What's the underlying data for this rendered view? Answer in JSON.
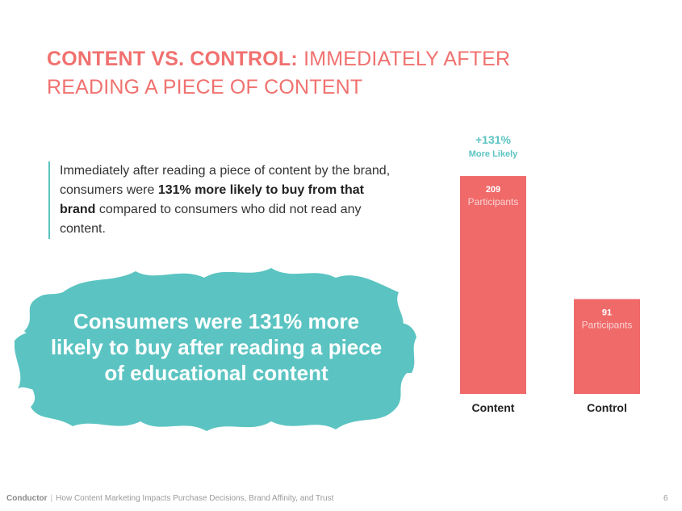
{
  "title": {
    "bold": "CONTENT VS. CONTROL:",
    "rest": " IMMEDIATELY AFTER READING A PIECE OF CONTENT"
  },
  "quote": {
    "part1": "Immediately after reading a piece of content by the brand, consumers were ",
    "bold": "131% more likely to buy from that brand",
    "part2": " compared to consumers who did not read any content."
  },
  "highlight": {
    "text": "Consumers were 131% more likely to buy after reading a piece of educational content"
  },
  "chart_data": {
    "type": "bar",
    "categories": [
      "Content",
      "Control"
    ],
    "values": [
      209,
      91
    ],
    "value_labels": [
      "209",
      "91"
    ],
    "bar_sublabel": "Participants",
    "annotation": {
      "value": "+131%",
      "label": "More Likely"
    },
    "ylim": [
      0,
      240
    ],
    "colors": {
      "bar": "#f06a6a",
      "annotation": "#5bc4c2",
      "axis_label": "#222222"
    }
  },
  "footer": {
    "brand": "Conductor",
    "separator": "|",
    "text": "How Content Marketing Impacts Purchase Decisions, Brand Affinity, and Trust",
    "page": "6"
  },
  "colors": {
    "accent_red": "#f0716f",
    "accent_teal": "#5bc4c2"
  }
}
